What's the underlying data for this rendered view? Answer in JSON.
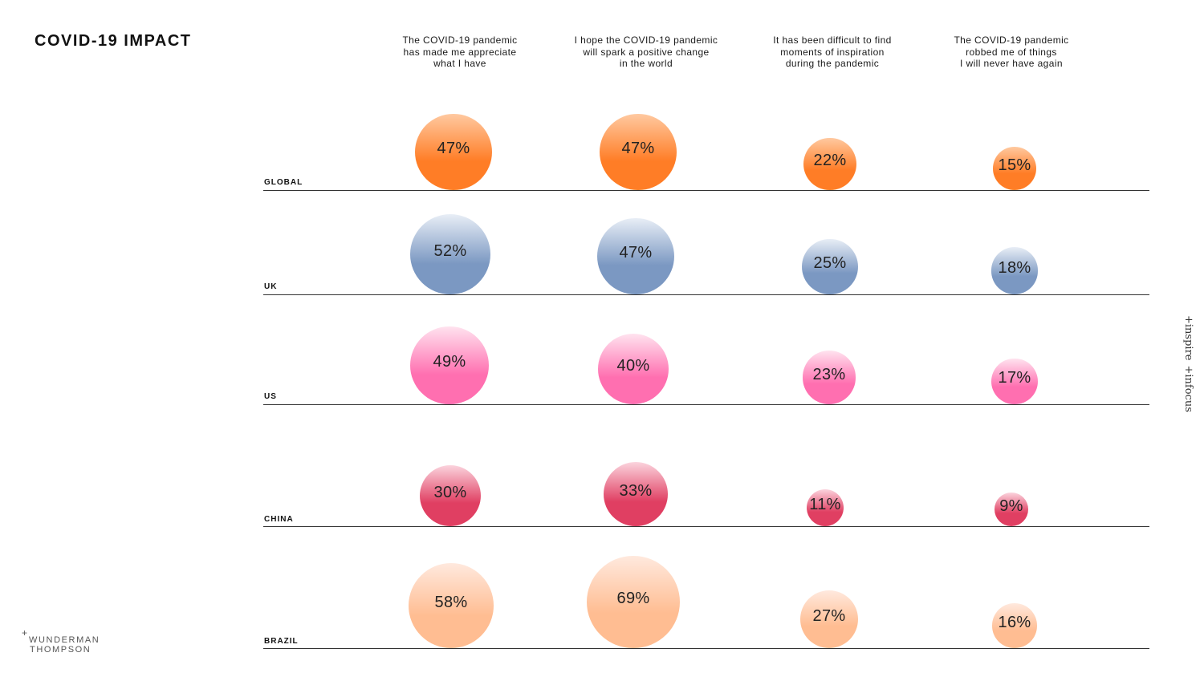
{
  "title": "COVID-19 IMPACT",
  "side_brand": {
    "left": "+inspire",
    "right": "+infocus"
  },
  "logo": {
    "line1": "WUNDERMAN",
    "line2": "THOMPSON"
  },
  "chart_data": {
    "type": "bubble",
    "title": "COVID-19 IMPACT",
    "unit": "%",
    "columns": [
      "The COVID-19 pandemic\nhas made me appreciate\nwhat I have",
      "I hope the COVID-19 pandemic\nwill spark a positive change\nin the world",
      "It has been difficult to find\nmoments of inspiration\nduring the pandemic",
      "The COVID-19 pandemic\nrobbed me of things\nI will never have again"
    ],
    "rows": [
      {
        "name": "GLOBAL",
        "color_top": "#ffc9a0",
        "color_bottom": "#ff7d26",
        "values": [
          47,
          47,
          22,
          15
        ]
      },
      {
        "name": "UK",
        "color_top": "#e8eef6",
        "color_bottom": "#7b98c2",
        "values": [
          52,
          47,
          25,
          18
        ]
      },
      {
        "name": "US",
        "color_top": "#ffe3ef",
        "color_bottom": "#ff6fb0",
        "values": [
          49,
          40,
          23,
          17
        ]
      },
      {
        "name": "CHINA",
        "color_top": "#fbd3dd",
        "color_bottom": "#e03f62",
        "values": [
          30,
          33,
          11,
          9
        ]
      },
      {
        "name": "BRAZIL",
        "color_top": "#ffe9de",
        "color_bottom": "#ffbd92",
        "values": [
          58,
          69,
          27,
          16
        ]
      }
    ],
    "labels": [
      [
        "47%",
        "47%",
        "22%",
        "15%"
      ],
      [
        "52%",
        "47%",
        "25%",
        "18%"
      ],
      [
        "49%",
        "40%",
        "23%",
        "17%"
      ],
      [
        "30%",
        "33%",
        "11%",
        "9%"
      ],
      [
        "58%",
        "69%",
        "27%",
        "16%"
      ]
    ]
  }
}
